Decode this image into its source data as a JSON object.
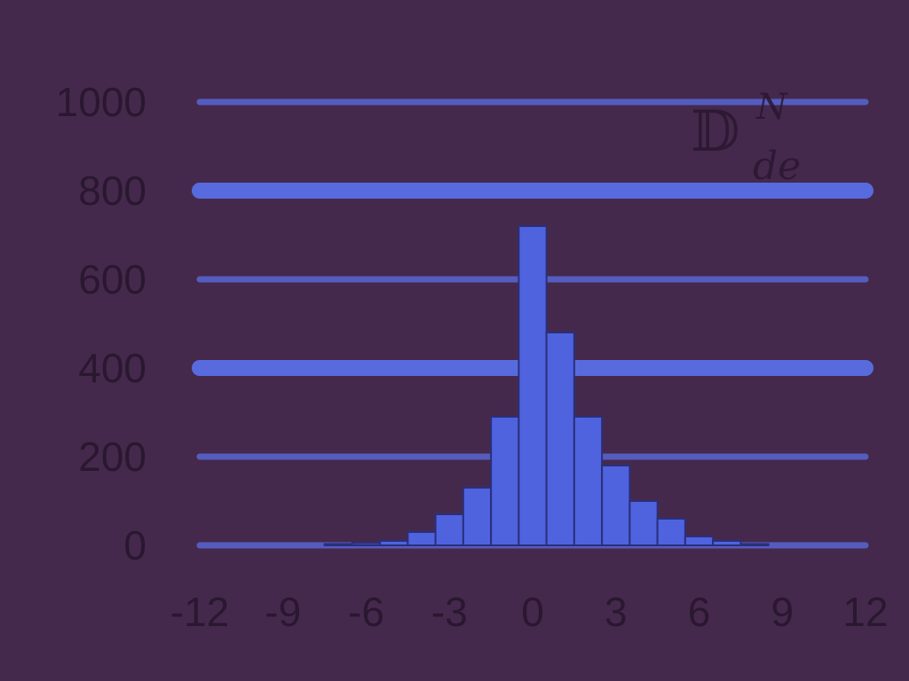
{
  "chart_data": {
    "type": "bar",
    "title": "",
    "legend": {
      "symbol": "𝔻",
      "superscript": "N",
      "subscript": "de",
      "placement": "top-right"
    },
    "xlim": [
      -12,
      12
    ],
    "ylim": [
      0,
      1000
    ],
    "x_ticks": [
      -12,
      -9,
      -6,
      -3,
      0,
      3,
      6,
      9,
      12
    ],
    "y_ticks": [
      0,
      200,
      400,
      600,
      800,
      1000
    ],
    "grid": true,
    "bin_width": 1,
    "x": [
      -7,
      -6,
      -5,
      -4,
      -3,
      -2,
      -1,
      0,
      1,
      2,
      3,
      4,
      5,
      6,
      7,
      8
    ],
    "values": [
      3,
      5,
      10,
      30,
      70,
      130,
      290,
      720,
      480,
      290,
      180,
      100,
      60,
      20,
      10,
      3
    ]
  },
  "colors": {
    "background": "#45294d",
    "bar": "#4f63df",
    "gridline": "#5a6fe6",
    "text": "#2a1730"
  }
}
